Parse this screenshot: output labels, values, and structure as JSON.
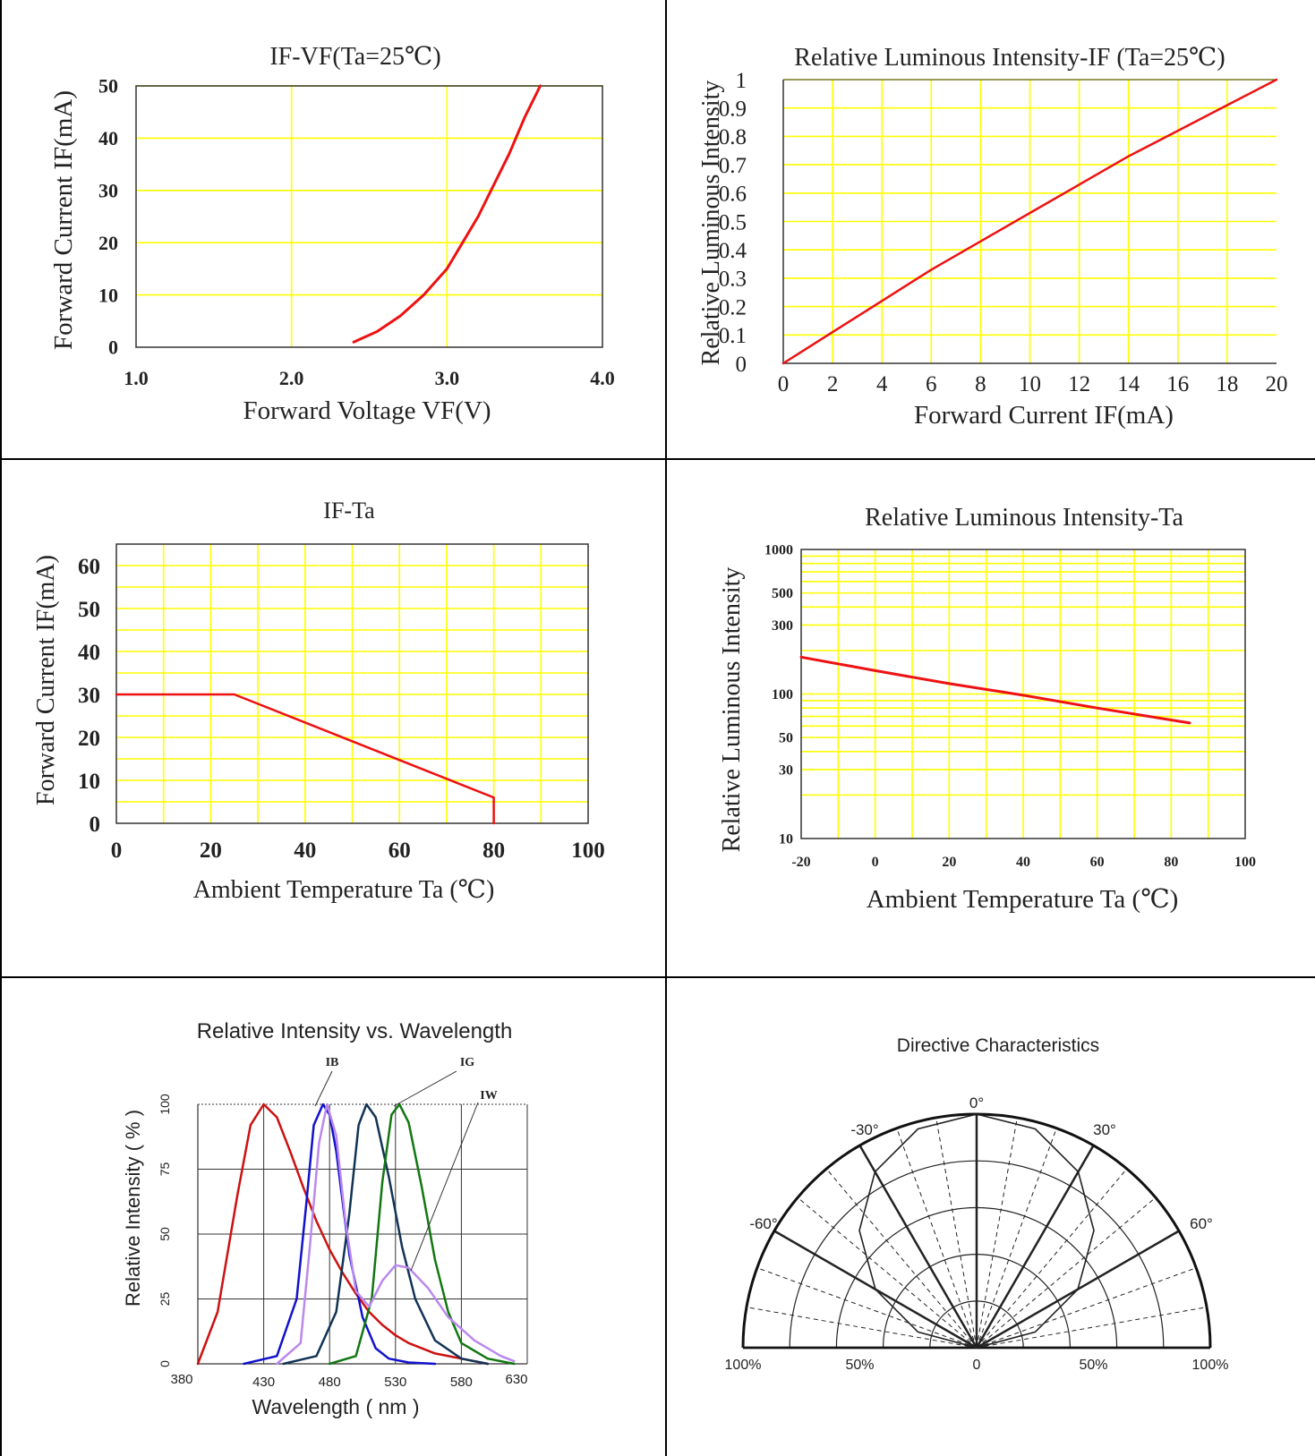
{
  "colors": {
    "curve": "#ee1111",
    "grid_yellow": "#ffff00",
    "frame": "#333333",
    "divider": "#000000"
  },
  "chart_data": [
    {
      "id": "ifvf",
      "type": "line",
      "title": "IF-VF(Ta=25℃)",
      "xlabel": "Forward Voltage VF(V)",
      "ylabel": "Forward Current IF(mA)",
      "xlim": [
        1.0,
        4.0
      ],
      "ylim": [
        0,
        50
      ],
      "x_ticks": [
        "1.0",
        "2.0",
        "3.0",
        "4.0"
      ],
      "y_ticks": [
        "0",
        "10",
        "20",
        "30",
        "40",
        "50"
      ],
      "series": [
        {
          "x": [
            2.4,
            2.55,
            2.7,
            2.85,
            3.0,
            3.1,
            3.2,
            3.3,
            3.4,
            3.5,
            3.6
          ],
          "y": [
            1,
            3,
            6,
            10,
            15,
            20,
            25,
            31,
            37,
            44,
            50
          ]
        }
      ]
    },
    {
      "id": "rli_if",
      "type": "line",
      "title": "Relative Luminous Intensity-IF (Ta=25℃)",
      "xlabel": "Forward Current IF(mA)",
      "ylabel": "Relative Luminous Intensity",
      "xlim": [
        0,
        20
      ],
      "ylim": [
        0,
        1
      ],
      "x_ticks": [
        "0",
        "2",
        "4",
        "6",
        "8",
        "10",
        "12",
        "14",
        "16",
        "18",
        "20"
      ],
      "y_ticks": [
        "0",
        "0.1",
        "0.2",
        "0.3",
        "0.4",
        "0.5",
        "0.6",
        "0.7",
        "0.8",
        "0.9",
        "1"
      ],
      "series": [
        {
          "x": [
            0,
            2,
            4,
            6,
            8,
            10,
            12,
            14,
            16,
            18,
            20
          ],
          "y": [
            0,
            0.11,
            0.22,
            0.33,
            0.43,
            0.53,
            0.63,
            0.73,
            0.82,
            0.91,
            1.0
          ]
        }
      ]
    },
    {
      "id": "if_ta",
      "type": "line",
      "title": "IF-Ta",
      "xlabel": "Ambient Temperature Ta (℃)",
      "ylabel": "Forward Current IF(mA)",
      "xlim": [
        0,
        100
      ],
      "ylim": [
        0,
        65
      ],
      "x_ticks": [
        "0",
        "20",
        "40",
        "60",
        "80",
        "100"
      ],
      "y_ticks": [
        "0",
        "10",
        "20",
        "30",
        "40",
        "50",
        "60"
      ],
      "series": [
        {
          "x": [
            0,
            25,
            80,
            80
          ],
          "y": [
            30,
            30,
            6,
            0
          ]
        }
      ]
    },
    {
      "id": "rli_ta",
      "type": "line",
      "title": "Relative Luminous Intensity-Ta",
      "xlabel": "Ambient Temperature Ta (℃)",
      "ylabel": "Relative Luminous Intensity",
      "xlim": [
        -20,
        100
      ],
      "ylim": [
        10,
        1000
      ],
      "yscale": "log",
      "x_ticks": [
        "-20",
        "0",
        "20",
        "40",
        "60",
        "80",
        "100"
      ],
      "y_ticks": [
        "10",
        "30",
        "50",
        "100",
        "300",
        "500",
        "1000"
      ],
      "series": [
        {
          "x": [
            -20,
            0,
            20,
            40,
            60,
            85
          ],
          "y": [
            180,
            145,
            118,
            98,
            80,
            63
          ]
        }
      ]
    },
    {
      "id": "spectrum",
      "type": "line",
      "title": "Relative Intensity vs. Wavelength",
      "xlabel": "Wavelength ( nm )",
      "ylabel": "Relative Intensity ( % )",
      "xlim": [
        380,
        630
      ],
      "ylim": [
        0,
        100
      ],
      "x_ticks": [
        "380",
        "430",
        "480",
        "530",
        "580",
        "630"
      ],
      "y_ticks": [
        "0",
        "25",
        "50",
        "75",
        "100"
      ],
      "annotations": [
        "IB",
        "IG",
        "IW"
      ],
      "series": [
        {
          "color": "#cc1111",
          "x": [
            380,
            395,
            410,
            420,
            430,
            440,
            450,
            460,
            470,
            480,
            490,
            500,
            510,
            520,
            530,
            540,
            560,
            580,
            600
          ],
          "y": [
            0,
            20,
            65,
            92,
            100,
            95,
            82,
            68,
            55,
            44,
            35,
            27,
            20,
            15,
            11,
            8,
            4,
            2,
            0
          ]
        },
        {
          "color": "#1111cc",
          "x": [
            415,
            440,
            455,
            462,
            468,
            475,
            480,
            485,
            490,
            495,
            505,
            515,
            525,
            540,
            560
          ],
          "y": [
            0,
            3,
            25,
            60,
            92,
            100,
            96,
            82,
            62,
            42,
            18,
            6,
            2,
            0.5,
            0
          ]
        },
        {
          "color": "#113355",
          "x": [
            445,
            470,
            485,
            495,
            502,
            508,
            515,
            525,
            535,
            545,
            560,
            580,
            600
          ],
          "y": [
            0,
            3,
            20,
            58,
            92,
            100,
            95,
            72,
            45,
            25,
            9,
            2,
            0
          ]
        },
        {
          "color": "#117711",
          "x": [
            480,
            500,
            512,
            520,
            527,
            533,
            540,
            550,
            560,
            570,
            580,
            600,
            620
          ],
          "y": [
            0,
            3,
            25,
            70,
            96,
            100,
            93,
            68,
            40,
            20,
            8,
            2,
            0
          ]
        },
        {
          "color": "#bb88ee",
          "x": [
            440,
            458,
            465,
            472,
            478,
            485,
            492,
            500,
            510,
            520,
            530,
            540,
            555,
            570,
            590,
            610,
            620
          ],
          "y": [
            0,
            8,
            45,
            85,
            100,
            88,
            55,
            28,
            22,
            32,
            38,
            37,
            29,
            18,
            9,
            3,
            1
          ]
        }
      ]
    },
    {
      "id": "directive",
      "type": "polar",
      "title": "Directive Characteristics",
      "angle_labels": [
        "0°",
        "-30°",
        "30°",
        "-60°",
        "60°"
      ],
      "radial_labels": [
        "100%",
        "50%",
        "0",
        "50%",
        "100%"
      ],
      "series": [
        {
          "angle_deg": [
            -90,
            -75,
            -60,
            -45,
            -30,
            -15,
            0,
            15,
            30,
            45,
            60,
            75,
            90
          ],
          "r": [
            0,
            0.26,
            0.5,
            0.71,
            0.87,
            0.97,
            1.0,
            0.97,
            0.87,
            0.71,
            0.5,
            0.26,
            0
          ]
        }
      ]
    }
  ]
}
